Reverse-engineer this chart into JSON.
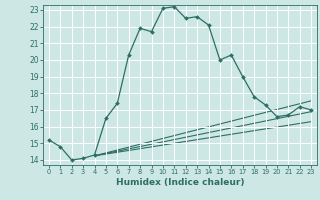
{
  "xlabel": "Humidex (Indice chaleur)",
  "bg_color": "#cde8e4",
  "grid_color": "#ffffff",
  "line_color": "#2d6e65",
  "xlim": [
    -0.5,
    23.5
  ],
  "ylim": [
    13.7,
    23.3
  ],
  "yticks": [
    14,
    15,
    16,
    17,
    18,
    19,
    20,
    21,
    22,
    23
  ],
  "xticks": [
    0,
    1,
    2,
    3,
    4,
    5,
    6,
    7,
    8,
    9,
    10,
    11,
    12,
    13,
    14,
    15,
    16,
    17,
    18,
    19,
    20,
    21,
    22,
    23
  ],
  "main_line": {
    "x": [
      0,
      1,
      2,
      3,
      4,
      5,
      6,
      7,
      8,
      9,
      10,
      11,
      12,
      13,
      14,
      15,
      16,
      17,
      18,
      19,
      20,
      21,
      22,
      23
    ],
    "y": [
      15.2,
      14.8,
      14.0,
      14.1,
      14.3,
      16.5,
      17.4,
      20.3,
      21.9,
      21.7,
      23.1,
      23.2,
      22.5,
      22.6,
      22.1,
      20.0,
      20.3,
      19.0,
      17.8,
      17.3,
      16.6,
      16.7,
      17.2,
      17.0
    ]
  },
  "flat_lines": [
    {
      "x": [
        4,
        23
      ],
      "y": [
        14.25,
        17.55
      ]
    },
    {
      "x": [
        4,
        23
      ],
      "y": [
        14.25,
        16.9
      ]
    },
    {
      "x": [
        4,
        23
      ],
      "y": [
        14.25,
        16.3
      ]
    }
  ]
}
